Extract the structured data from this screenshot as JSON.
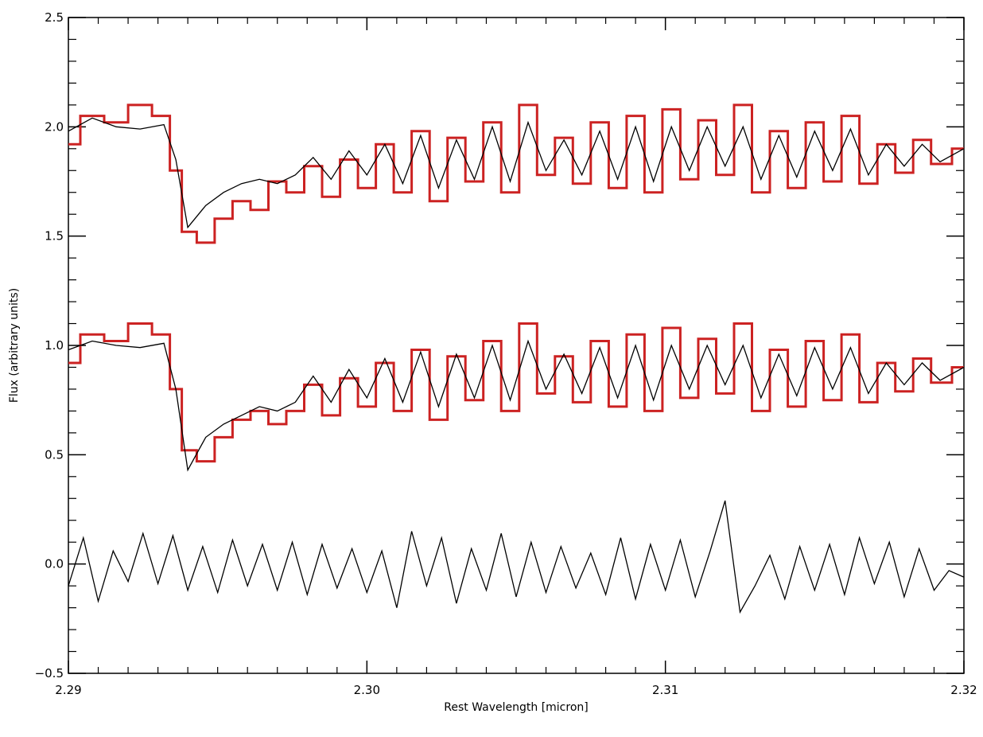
{
  "chart_data": {
    "type": "line",
    "title": "",
    "xlabel": "Rest Wavelength [micron]",
    "ylabel": "Flux (arbitrary units)",
    "xlim": [
      2.29,
      2.32
    ],
    "ylim": [
      -0.5,
      2.5
    ],
    "x_ticks": [
      2.29,
      2.3,
      2.31,
      2.32
    ],
    "x_tick_labels": [
      "2.29",
      "2.30",
      "2.31",
      "2.32"
    ],
    "y_ticks": [
      -0.5,
      0.0,
      0.5,
      1.0,
      1.5,
      2.0,
      2.5
    ],
    "y_tick_labels": [
      "−0.5",
      "0.0",
      "0.5",
      "1.0",
      "1.5",
      "2.0",
      "2.5"
    ],
    "grid": false,
    "colors": {
      "observed": "#cc2222",
      "model": "#000000",
      "residual": "#000000"
    },
    "series": [
      {
        "role": "observed-upper",
        "style": "steps",
        "color": "#cc2222",
        "x": [
          2.29,
          2.2908,
          2.2916,
          2.2924,
          2.2932,
          2.2936,
          2.294,
          2.2946,
          2.2952,
          2.2958,
          2.2964,
          2.297,
          2.2976,
          2.2982,
          2.2988,
          2.2994,
          2.3,
          2.3006,
          2.3012,
          2.3018,
          2.3024,
          2.303,
          2.3036,
          2.3042,
          2.3048,
          2.3054,
          2.306,
          2.3066,
          2.3072,
          2.3078,
          2.3084,
          2.309,
          2.3096,
          2.3102,
          2.3108,
          2.3114,
          2.312,
          2.3126,
          2.3132,
          2.3138,
          2.3144,
          2.315,
          2.3156,
          2.3162,
          2.3168,
          2.3174,
          2.318,
          2.3186,
          2.3192,
          2.32
        ],
        "y": [
          1.92,
          2.05,
          2.02,
          2.1,
          2.05,
          1.8,
          1.52,
          1.47,
          1.58,
          1.66,
          1.62,
          1.75,
          1.7,
          1.82,
          1.68,
          1.85,
          1.72,
          1.92,
          1.7,
          1.98,
          1.66,
          1.95,
          1.75,
          2.02,
          1.7,
          2.1,
          1.78,
          1.95,
          1.74,
          2.02,
          1.72,
          2.05,
          1.7,
          2.08,
          1.76,
          2.03,
          1.78,
          2.1,
          1.7,
          1.98,
          1.72,
          2.02,
          1.75,
          2.05,
          1.74,
          1.92,
          1.79,
          1.94,
          1.83,
          1.9
        ]
      },
      {
        "role": "model-upper",
        "style": "line",
        "color": "#000000",
        "x": [
          2.29,
          2.2908,
          2.2916,
          2.2924,
          2.2932,
          2.2936,
          2.294,
          2.2946,
          2.2952,
          2.2958,
          2.2964,
          2.297,
          2.2976,
          2.2982,
          2.2988,
          2.2994,
          2.3,
          2.3006,
          2.3012,
          2.3018,
          2.3024,
          2.303,
          2.3036,
          2.3042,
          2.3048,
          2.3054,
          2.306,
          2.3066,
          2.3072,
          2.3078,
          2.3084,
          2.309,
          2.3096,
          2.3102,
          2.3108,
          2.3114,
          2.312,
          2.3126,
          2.3132,
          2.3138,
          2.3144,
          2.315,
          2.3156,
          2.3162,
          2.3168,
          2.3174,
          2.318,
          2.3186,
          2.3192,
          2.32
        ],
        "y": [
          1.98,
          2.04,
          2.0,
          1.99,
          2.01,
          1.85,
          1.54,
          1.64,
          1.7,
          1.74,
          1.76,
          1.74,
          1.78,
          1.86,
          1.76,
          1.89,
          1.78,
          1.92,
          1.74,
          1.96,
          1.72,
          1.94,
          1.76,
          2.0,
          1.75,
          2.02,
          1.8,
          1.94,
          1.78,
          1.98,
          1.76,
          2.0,
          1.75,
          2.0,
          1.8,
          2.0,
          1.82,
          2.0,
          1.76,
          1.96,
          1.77,
          1.98,
          1.8,
          1.99,
          1.78,
          1.92,
          1.82,
          1.92,
          1.84,
          1.9
        ]
      },
      {
        "role": "observed-lower",
        "style": "steps",
        "color": "#cc2222",
        "x": [
          2.29,
          2.2908,
          2.2916,
          2.2924,
          2.2932,
          2.2936,
          2.294,
          2.2946,
          2.2952,
          2.2958,
          2.2964,
          2.297,
          2.2976,
          2.2982,
          2.2988,
          2.2994,
          2.3,
          2.3006,
          2.3012,
          2.3018,
          2.3024,
          2.303,
          2.3036,
          2.3042,
          2.3048,
          2.3054,
          2.306,
          2.3066,
          2.3072,
          2.3078,
          2.3084,
          2.309,
          2.3096,
          2.3102,
          2.3108,
          2.3114,
          2.312,
          2.3126,
          2.3132,
          2.3138,
          2.3144,
          2.315,
          2.3156,
          2.3162,
          2.3168,
          2.3174,
          2.318,
          2.3186,
          2.3192,
          2.32
        ],
        "y": [
          0.92,
          1.05,
          1.02,
          1.1,
          1.05,
          0.8,
          0.52,
          0.47,
          0.58,
          0.66,
          0.7,
          0.64,
          0.7,
          0.82,
          0.68,
          0.85,
          0.72,
          0.92,
          0.7,
          0.98,
          0.66,
          0.95,
          0.75,
          1.02,
          0.7,
          1.1,
          0.78,
          0.95,
          0.74,
          1.02,
          0.72,
          1.05,
          0.7,
          1.08,
          0.76,
          1.03,
          0.78,
          1.1,
          0.7,
          0.98,
          0.72,
          1.02,
          0.75,
          1.05,
          0.74,
          0.92,
          0.79,
          0.94,
          0.83,
          0.9
        ]
      },
      {
        "role": "model-lower",
        "style": "line",
        "color": "#000000",
        "x": [
          2.29,
          2.2908,
          2.2916,
          2.2924,
          2.2932,
          2.2936,
          2.294,
          2.2946,
          2.2952,
          2.2958,
          2.2964,
          2.297,
          2.2976,
          2.2982,
          2.2988,
          2.2994,
          2.3,
          2.3006,
          2.3012,
          2.3018,
          2.3024,
          2.303,
          2.3036,
          2.3042,
          2.3048,
          2.3054,
          2.306,
          2.3066,
          2.3072,
          2.3078,
          2.3084,
          2.309,
          2.3096,
          2.3102,
          2.3108,
          2.3114,
          2.312,
          2.3126,
          2.3132,
          2.3138,
          2.3144,
          2.315,
          2.3156,
          2.3162,
          2.3168,
          2.3174,
          2.318,
          2.3186,
          2.3192,
          2.32
        ],
        "y": [
          0.98,
          1.02,
          1.0,
          0.99,
          1.01,
          0.8,
          0.43,
          0.58,
          0.64,
          0.68,
          0.72,
          0.7,
          0.74,
          0.86,
          0.74,
          0.89,
          0.76,
          0.94,
          0.74,
          0.97,
          0.72,
          0.96,
          0.76,
          1.0,
          0.75,
          1.02,
          0.8,
          0.96,
          0.78,
          0.99,
          0.76,
          1.0,
          0.75,
          1.0,
          0.8,
          1.0,
          0.82,
          1.0,
          0.76,
          0.96,
          0.77,
          0.99,
          0.8,
          0.99,
          0.78,
          0.92,
          0.82,
          0.92,
          0.84,
          0.9
        ]
      },
      {
        "role": "residual",
        "style": "line",
        "color": "#000000",
        "x": [
          2.29,
          2.2905,
          2.291,
          2.2915,
          2.292,
          2.2925,
          2.293,
          2.2935,
          2.294,
          2.2945,
          2.295,
          2.2955,
          2.296,
          2.2965,
          2.297,
          2.2975,
          2.298,
          2.2985,
          2.299,
          2.2995,
          2.3,
          2.3005,
          2.301,
          2.3015,
          2.302,
          2.3025,
          2.303,
          2.3035,
          2.304,
          2.3045,
          2.305,
          2.3055,
          2.306,
          2.3065,
          2.307,
          2.3075,
          2.308,
          2.3085,
          2.309,
          2.3095,
          2.31,
          2.3105,
          2.311,
          2.3115,
          2.312,
          2.3125,
          2.313,
          2.3135,
          2.314,
          2.3145,
          2.315,
          2.3155,
          2.316,
          2.3165,
          2.317,
          2.3175,
          2.318,
          2.3185,
          2.319,
          2.3195,
          2.32
        ],
        "y": [
          -0.1,
          0.12,
          -0.17,
          0.06,
          -0.08,
          0.14,
          -0.09,
          0.13,
          -0.12,
          0.08,
          -0.13,
          0.11,
          -0.1,
          0.09,
          -0.12,
          0.1,
          -0.14,
          0.09,
          -0.11,
          0.07,
          -0.13,
          0.06,
          -0.2,
          0.15,
          -0.1,
          0.12,
          -0.18,
          0.07,
          -0.12,
          0.14,
          -0.15,
          0.1,
          -0.13,
          0.08,
          -0.11,
          0.05,
          -0.14,
          0.12,
          -0.16,
          0.09,
          -0.12,
          0.11,
          -0.15,
          0.06,
          0.29,
          -0.22,
          -0.1,
          0.04,
          -0.16,
          0.08,
          -0.12,
          0.09,
          -0.14,
          0.12,
          -0.09,
          0.1,
          -0.15,
          0.07,
          -0.12,
          -0.03,
          -0.06
        ]
      }
    ]
  }
}
